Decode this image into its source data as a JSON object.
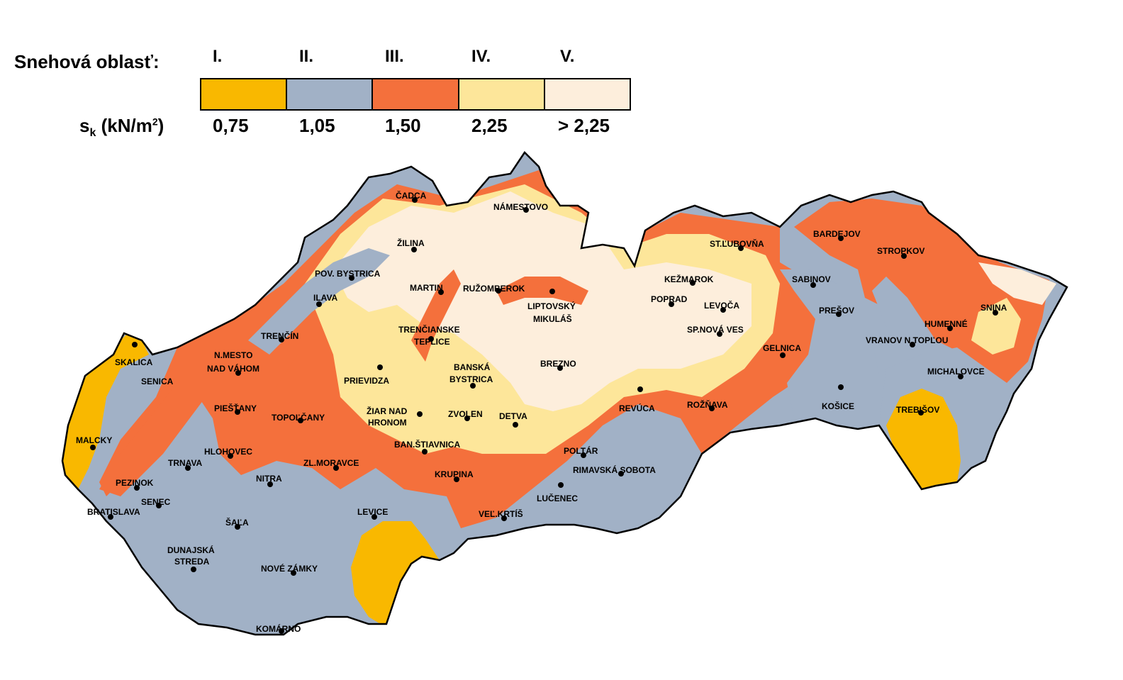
{
  "legend": {
    "title": "Snehová oblasť:",
    "unit_main": "s",
    "unit_sub": "k",
    "unit_rest": " (kN/m",
    "unit_sup": "2",
    "unit_close": ")",
    "zones": [
      {
        "label": "I.",
        "value": "0,75",
        "color": "#f9b800"
      },
      {
        "label": "II.",
        "value": "1,05",
        "color": "#a1b1c6"
      },
      {
        "label": "III.",
        "value": "1,50",
        "color": "#f4703c"
      },
      {
        "label": "IV.",
        "value": "2,25",
        "color": "#fde69a"
      },
      {
        "label": "V.",
        "value": "> 2,25",
        "color": "#fdeedc"
      }
    ]
  },
  "cities": [
    {
      "name": "ČADCA"
    },
    {
      "name": "NÁMESTOVO"
    },
    {
      "name": "ŽILINA"
    },
    {
      "name": "POV. BYSTRICA"
    },
    {
      "name": "MARTIN"
    },
    {
      "name": "RUŽOMBEROK"
    },
    {
      "name": "LIPTOVSKÝ"
    },
    {
      "name": "MIKULÁŠ"
    },
    {
      "name": "ILAVA"
    },
    {
      "name": "TRENČÍN"
    },
    {
      "name": "TRENČIANSKE"
    },
    {
      "name": "TEPLICE"
    },
    {
      "name": "N.MESTO"
    },
    {
      "name": "NAD VÁHOM"
    },
    {
      "name": "SKALICA"
    },
    {
      "name": "SENICA"
    },
    {
      "name": "PRIEVIDZA"
    },
    {
      "name": "BANSKÁ"
    },
    {
      "name": "BYSTRICA"
    },
    {
      "name": "BREZNO"
    },
    {
      "name": "PIEŠŤANY"
    },
    {
      "name": "TOPOĽČANY"
    },
    {
      "name": "ŽIAR NAD"
    },
    {
      "name": "HRONOM"
    },
    {
      "name": "ZVOLEN"
    },
    {
      "name": "DETVA"
    },
    {
      "name": "MALCKY"
    },
    {
      "name": "HLOHOVEC"
    },
    {
      "name": "TRNAVA"
    },
    {
      "name": "ZL.MORAVCE"
    },
    {
      "name": "BAN.ŠTIAVNICA"
    },
    {
      "name": "NITRA"
    },
    {
      "name": "PEZINOK"
    },
    {
      "name": "KRUPINA"
    },
    {
      "name": "SENEC"
    },
    {
      "name": "BRATISLAVA"
    },
    {
      "name": "LEVICE"
    },
    {
      "name": "ŠAĽA"
    },
    {
      "name": "VEĽ.KRTÍŠ"
    },
    {
      "name": "DUNAJSKÁ"
    },
    {
      "name": "STREDA"
    },
    {
      "name": "NOVÉ ZÁMKY"
    },
    {
      "name": "KOMÁRNO"
    },
    {
      "name": "POLTÁR"
    },
    {
      "name": "RIMAVSKÁ SOBOTA"
    },
    {
      "name": "LUČENEC"
    },
    {
      "name": "REVÚCA"
    },
    {
      "name": "ROŽŇAVA"
    },
    {
      "name": "ST.ĽUBOVŇA"
    },
    {
      "name": "KEŽMAROK"
    },
    {
      "name": "POPRAD"
    },
    {
      "name": "LEVOČA"
    },
    {
      "name": "SP.NOVÁ VES"
    },
    {
      "name": "GELNICA"
    },
    {
      "name": "BARDEJOV"
    },
    {
      "name": "STROPKOV"
    },
    {
      "name": "SABINOV"
    },
    {
      "name": "PREŠOV"
    },
    {
      "name": "HUMENNÉ"
    },
    {
      "name": "SNINA"
    },
    {
      "name": "VRANOV N.TOPĽOU"
    },
    {
      "name": "MICHALOVCE"
    },
    {
      "name": "KOŠICE"
    },
    {
      "name": "TREBIŠOV"
    }
  ]
}
